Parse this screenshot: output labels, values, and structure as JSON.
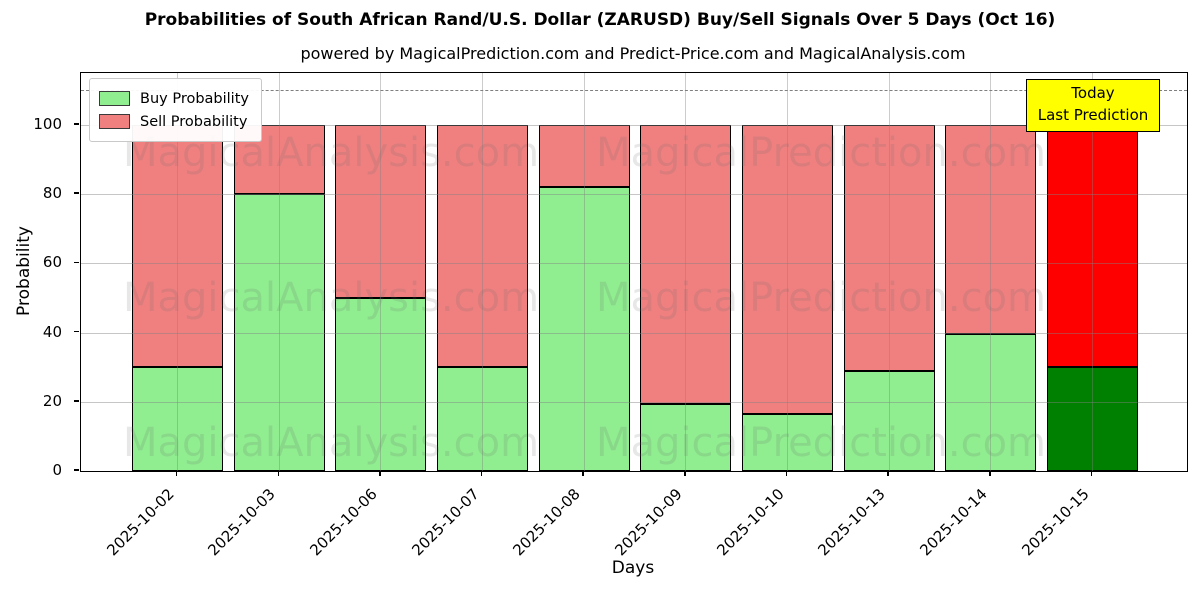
{
  "header": {
    "title": "Probabilities of South African Rand/U.S. Dollar (ZARUSD) Buy/Sell Signals Over 5 Days (Oct 16)",
    "subtitle": "powered by MagicalPrediction.com and Predict-Price.com and MagicalAnalysis.com"
  },
  "legend": {
    "items": [
      {
        "label": "Buy Probability",
        "color": "#90ee90"
      },
      {
        "label": "Sell Probability",
        "color": "#f08080"
      }
    ]
  },
  "annotation": {
    "line1": "Today",
    "line2": "Last Prediction",
    "bg_color": "#ffff00"
  },
  "watermarks": {
    "left_text": "MagicalAnalysis.com",
    "right_text": "MagicalPrediction.com",
    "rows": 3
  },
  "axes": {
    "xlabel": "Days",
    "ylabel": "Probability"
  },
  "chart_data": {
    "type": "bar",
    "stacked": true,
    "title": "Probabilities of South African Rand/U.S. Dollar (ZARUSD) Buy/Sell Signals Over 5 Days (Oct 16)",
    "categories": [
      "2025-10-02",
      "2025-10-03",
      "2025-10-06",
      "2025-10-07",
      "2025-10-08",
      "2025-10-09",
      "2025-10-10",
      "2025-10-13",
      "2025-10-14",
      "2025-10-15"
    ],
    "series": [
      {
        "name": "Buy Probability",
        "color": "#90ee90",
        "values": [
          30,
          80,
          50,
          30,
          82,
          19.5,
          16.5,
          29,
          39.5,
          30
        ]
      },
      {
        "name": "Sell Probability",
        "color": "#f08080",
        "values": [
          70,
          20,
          50,
          70,
          18,
          80.5,
          83.5,
          71,
          60.5,
          70
        ]
      }
    ],
    "last_bar_colors": {
      "buy": "#008000",
      "sell": "#ff0000"
    },
    "bar_edge_color": "#000000",
    "xlabel": "Days",
    "ylabel": "Probability",
    "ylim": [
      0,
      115
    ],
    "yticks": [
      0,
      20,
      40,
      60,
      80,
      100
    ],
    "dashed_line_y": 110,
    "dashed_line_color": "#7f7f7f",
    "grid": true,
    "legend_position": "upper left"
  }
}
